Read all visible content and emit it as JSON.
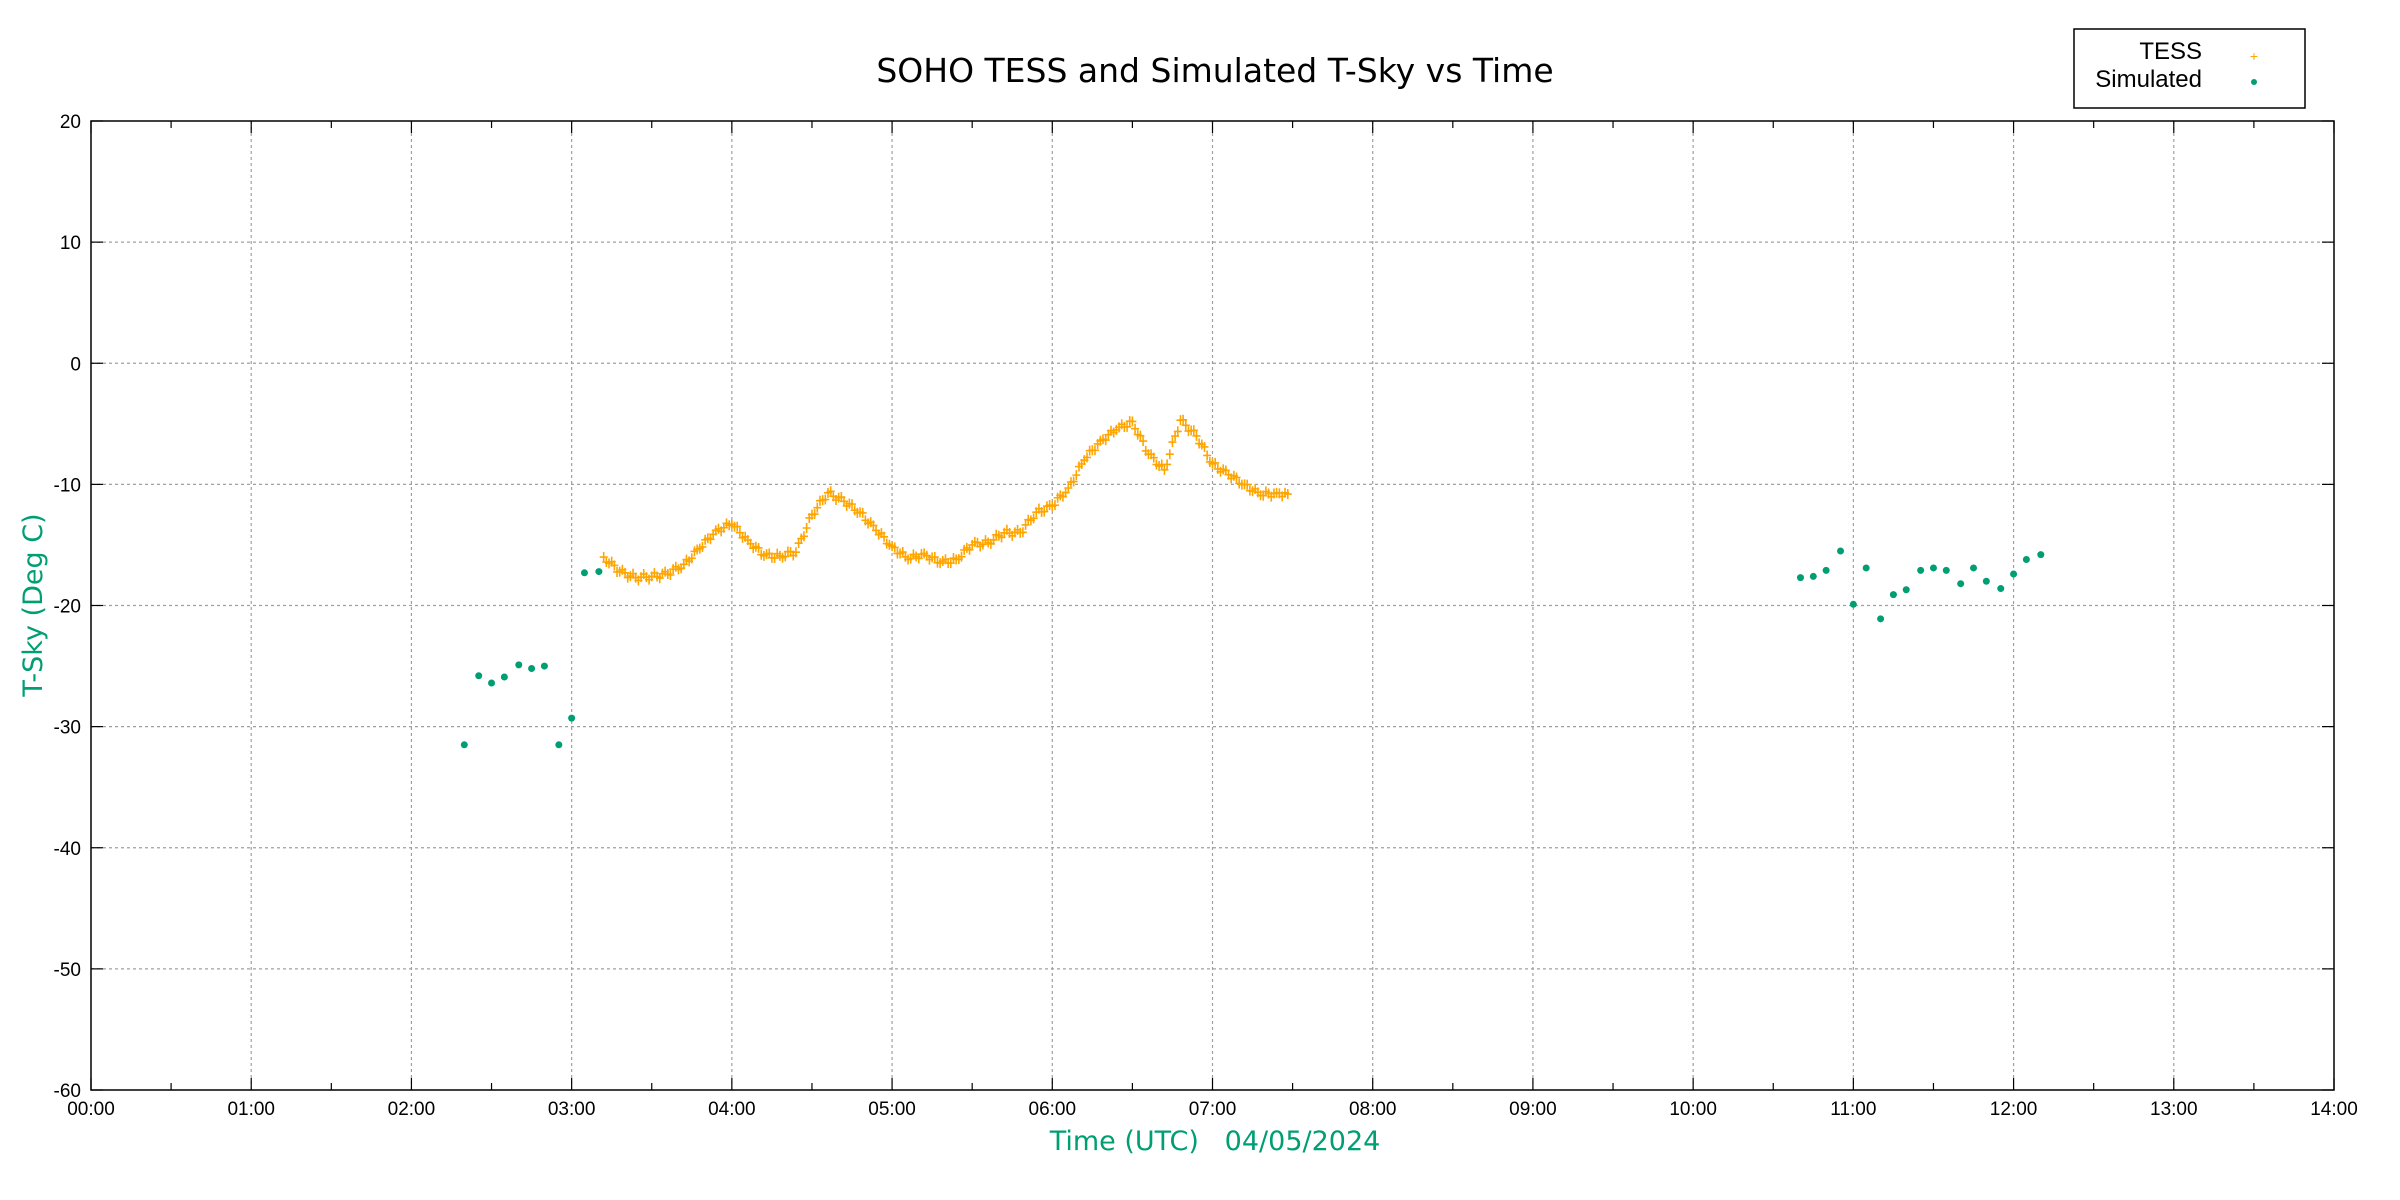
{
  "chart_data": {
    "type": "scatter",
    "title": "SOHO TESS and Simulated T-Sky vs Time",
    "xlabel": "Time (UTC)   04/05/2024",
    "ylabel": "T-Sky (Deg C)",
    "xlim": [
      0,
      14
    ],
    "ylim": [
      -60,
      20
    ],
    "x_unit": "hours UTC",
    "xticks": [
      "00:00",
      "01:00",
      "02:00",
      "03:00",
      "04:00",
      "05:00",
      "06:00",
      "07:00",
      "08:00",
      "09:00",
      "10:00",
      "11:00",
      "12:00",
      "13:00",
      "14:00"
    ],
    "yticks": [
      "20",
      "10",
      "0",
      "-10",
      "-20",
      "-30",
      "-40",
      "-50",
      "-60"
    ],
    "grid": true,
    "legend_position": "top-right",
    "series": [
      {
        "name": "TESS",
        "marker": "plus",
        "color": "#ffa500",
        "x": [
          3.2,
          3.3,
          3.4,
          3.5,
          3.6,
          3.7,
          3.8,
          3.9,
          4.0,
          4.1,
          4.2,
          4.3,
          4.4,
          4.5,
          4.6,
          4.7,
          4.8,
          4.9,
          5.0,
          5.1,
          5.2,
          5.3,
          5.4,
          5.5,
          5.6,
          5.7,
          5.8,
          5.9,
          6.0,
          6.1,
          6.2,
          6.3,
          6.4,
          6.5,
          6.6,
          6.7,
          6.8,
          6.9,
          7.0,
          7.1,
          7.2,
          7.3,
          7.4,
          7.47
        ],
        "y": [
          -16.0,
          -17.2,
          -17.7,
          -17.6,
          -17.4,
          -16.6,
          -15.3,
          -13.8,
          -13.3,
          -14.6,
          -15.9,
          -15.9,
          -15.6,
          -12.5,
          -10.7,
          -11.4,
          -12.3,
          -13.8,
          -15.1,
          -16.2,
          -15.7,
          -16.5,
          -16.2,
          -15.0,
          -14.8,
          -14.0,
          -14.0,
          -12.3,
          -11.8,
          -10.3,
          -8.0,
          -6.4,
          -5.5,
          -4.8,
          -7.5,
          -8.8,
          -4.7,
          -6.0,
          -8.3,
          -9.2,
          -10.0,
          -10.9,
          -10.7,
          -10.8
        ]
      },
      {
        "name": "Simulated",
        "marker": "dot",
        "color": "#009e73",
        "x": [
          2.33,
          2.42,
          2.5,
          2.58,
          2.67,
          2.75,
          2.83,
          2.92,
          3.0,
          3.08,
          3.17,
          10.67,
          10.75,
          10.83,
          10.92,
          11.0,
          11.08,
          11.17,
          11.25,
          11.33,
          11.42,
          11.5,
          11.58,
          11.67,
          11.75,
          11.83,
          11.92,
          12.0,
          12.08,
          12.17
        ],
        "y": [
          -31.5,
          -25.8,
          -26.4,
          -25.9,
          -24.9,
          -25.2,
          -25.0,
          -31.5,
          -29.3,
          -17.3,
          -17.2,
          -17.7,
          -17.6,
          -17.1,
          -15.5,
          -19.9,
          -16.9,
          -21.1,
          -19.1,
          -18.7,
          -17.1,
          -16.9,
          -17.1,
          -18.2,
          -16.9,
          -18.0,
          -18.6,
          -17.4,
          -16.2,
          -15.8
        ]
      }
    ]
  }
}
